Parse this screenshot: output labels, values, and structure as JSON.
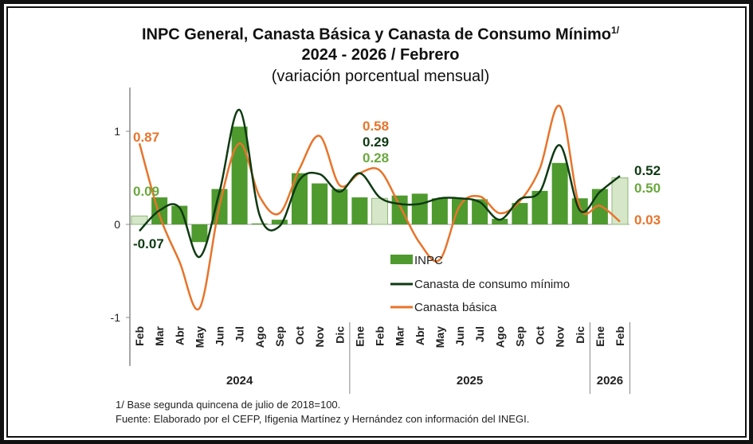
{
  "title": {
    "line1": "INPC General, Canasta Básica  y Canasta de Consumo Mínimo",
    "sup": "1/",
    "line2": "2024 - 2026 / Febrero",
    "line3": "(variación porcentual mensual)"
  },
  "colors": {
    "inpc": "#4e9a2e",
    "inpc_highlight": "#d6e6c8",
    "consumo": "#0f3a12",
    "basica": "#e8742a"
  },
  "annotations": {
    "basica_start": "0.87",
    "inpc_start": "0.09",
    "consumo_start": "-0.07",
    "basica_mid": "0.58",
    "consumo_mid": "0.29",
    "inpc_mid": "0.28",
    "consumo_end": "0.52",
    "inpc_end": "0.50",
    "basica_end": "0.03"
  },
  "footer": {
    "note": "1/ Base segunda quincena de julio de 2018=100.",
    "source": "Fuente: Elaborado por el CEFP, Ifigenia Martínez y Hernández con información del INEGI."
  },
  "chart_data": {
    "type": "bar",
    "title": "INPC General, Canasta Básica y Canasta de Consumo Mínimo 2024 - 2026 / Febrero",
    "ylim": [
      -1,
      1.5
    ],
    "yticks": [
      "1",
      "0",
      "-1"
    ],
    "ytick_values": [
      1,
      0,
      -1
    ],
    "categories": [
      "Feb",
      "Mar",
      "Abr",
      "May",
      "Jun",
      "Jul",
      "Ago",
      "Sep",
      "Oct",
      "Nov",
      "Dic",
      "Ene",
      "Feb",
      "Mar",
      "Abr",
      "May",
      "Jun",
      "Jul",
      "Ago",
      "Sep",
      "Oct",
      "Nov",
      "Dic",
      "Ene",
      "Feb"
    ],
    "years": [
      {
        "label": "2024",
        "start": 0,
        "end": 10
      },
      {
        "label": "2025",
        "start": 11,
        "end": 22
      },
      {
        "label": "2026",
        "start": 23,
        "end": 24
      }
    ],
    "highlighted": [
      0,
      12,
      24
    ],
    "series": [
      {
        "name": "INPC",
        "type": "bar",
        "values": [
          0.09,
          0.29,
          0.2,
          -0.19,
          0.38,
          1.05,
          0.01,
          0.05,
          0.55,
          0.44,
          0.38,
          0.29,
          0.28,
          0.31,
          0.33,
          0.28,
          0.28,
          0.27,
          0.06,
          0.23,
          0.36,
          0.66,
          0.28,
          0.38,
          0.5
        ]
      },
      {
        "name": "Canasta de consumo mínimo",
        "type": "line",
        "values": [
          -0.07,
          0.15,
          0.18,
          -0.35,
          0.35,
          1.23,
          0.1,
          -0.02,
          0.48,
          0.54,
          0.35,
          0.55,
          0.29,
          0.22,
          0.22,
          0.28,
          0.28,
          0.24,
          0.05,
          0.27,
          0.35,
          0.85,
          0.15,
          0.35,
          0.52
        ]
      },
      {
        "name": "Canasta básica",
        "type": "line",
        "values": [
          0.87,
          0.1,
          -0.4,
          -0.9,
          0.2,
          0.87,
          0.3,
          0.12,
          0.6,
          0.95,
          0.42,
          0.55,
          0.58,
          0.2,
          -0.2,
          -0.38,
          0.2,
          0.3,
          0.12,
          0.25,
          0.6,
          1.27,
          0.18,
          0.2,
          0.03
        ]
      }
    ],
    "legend": "center"
  }
}
